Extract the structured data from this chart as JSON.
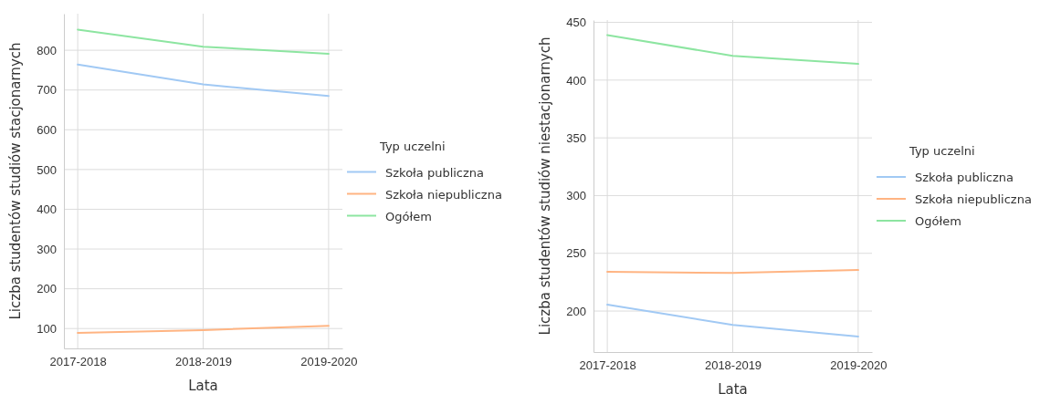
{
  "chart_data": [
    {
      "type": "line",
      "xlabel": "Lata",
      "ylabel": "Liczba studentów studiów stacjonarnych",
      "legend_title": "Typ uczelni",
      "categories": [
        "2017-2018",
        "2018-2019",
        "2019-2020"
      ],
      "series": [
        {
          "name": "Szkoła publiczna",
          "color": "#a1c9f4",
          "values": [
            764,
            714,
            685
          ]
        },
        {
          "name": "Szkoła niepubliczna",
          "color": "#ffb482",
          "values": [
            89,
            96,
            107
          ]
        },
        {
          "name": "Ogółem",
          "color": "#8de5a1",
          "values": [
            852,
            809,
            791
          ]
        }
      ],
      "ylim": [
        50,
        892
      ],
      "yticks": [
        100,
        200,
        300,
        400,
        500,
        600,
        700,
        800
      ],
      "grid": true,
      "legend": "right"
    },
    {
      "type": "line",
      "xlabel": "Lata",
      "ylabel": "Liczba studentów studiów niestacjonarnych",
      "legend_title": "Typ uczelni",
      "categories": [
        "2017-2018",
        "2018-2019",
        "2019-2020"
      ],
      "series": [
        {
          "name": "Szkoła publiczna",
          "color": "#a1c9f4",
          "values": [
            205.5,
            188,
            178
          ]
        },
        {
          "name": "Szkoła niepubliczna",
          "color": "#ffb482",
          "values": [
            234,
            233,
            235.5
          ]
        },
        {
          "name": "Ogółem",
          "color": "#8de5a1",
          "values": [
            439,
            421,
            414
          ]
        }
      ],
      "ylim": [
        164.5,
        452
      ],
      "yticks": [
        200,
        250,
        300,
        350,
        400,
        450
      ],
      "grid": true,
      "legend": "right"
    }
  ]
}
